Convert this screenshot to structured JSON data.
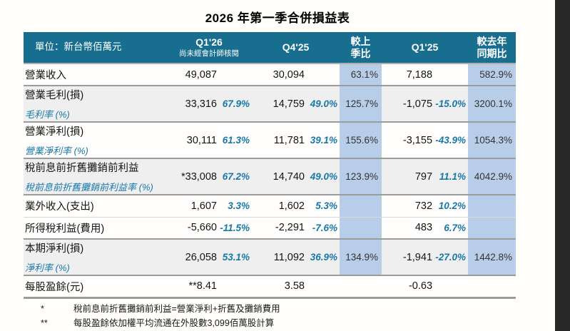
{
  "title": "2026 年第一季合併損益表",
  "colors": {
    "header_bg": "#176e8e",
    "highlight_column": "#b8cee8",
    "shaded_row": "#efefef",
    "accent_text": "#1878a8",
    "edge_bar": "#282828"
  },
  "table": {
    "header": {
      "unit_label": "單位：新台幣佰萬元",
      "q126_line1": "Q1'26",
      "q126_line2": "尚未經會計師核閱",
      "q425": "Q4'25",
      "qoq_line1": "較上",
      "qoq_line2": "季比",
      "q125": "Q1'25",
      "yoy_line1": "較去年",
      "yoy_line2": "同期比"
    },
    "rows": [
      {
        "label": "營業收入",
        "sublabel": "",
        "q126": "49,087",
        "q126_pct": "",
        "q425": "30,094",
        "q425_pct": "",
        "qoq": "63.1%",
        "q125": "7,188",
        "q125_pct": "",
        "yoy": "582.9%",
        "shade": false,
        "light_divider": false,
        "no_highlight": false
      },
      {
        "label": "營業毛利(損)",
        "sublabel": "毛利率 (%)",
        "q126": "33,316",
        "q126_pct": "67.9%",
        "q425": "14,759",
        "q425_pct": "49.0%",
        "qoq": "125.7%",
        "q125": "-1,075",
        "q125_pct": "-15.0%",
        "yoy": "3200.1%",
        "shade": true,
        "light_divider": false,
        "no_highlight": false
      },
      {
        "label": "營業淨利(損)",
        "sublabel": "營業淨利率 (%)",
        "q126": "30,111",
        "q126_pct": "61.3%",
        "q425": "11,781",
        "q425_pct": "39.1%",
        "qoq": "155.6%",
        "q125": "-3,155",
        "q125_pct": "-43.9%",
        "yoy": "1054.3%",
        "shade": false,
        "light_divider": false,
        "no_highlight": false
      },
      {
        "label": "稅前息前折舊攤銷前利益",
        "sublabel": "稅前息前折舊攤銷前利益率 (%)",
        "q126": "*33,008",
        "q126_pct": "67.2%",
        "q425": "14,740",
        "q425_pct": "49.0%",
        "qoq": "123.9%",
        "q125": "797",
        "q125_pct": "11.1%",
        "yoy": "4042.9%",
        "shade": true,
        "light_divider": false,
        "no_highlight": false
      },
      {
        "label": "業外收入(支出)",
        "sublabel": "",
        "q126": "1,607",
        "q126_pct": "3.3%",
        "q425": "1,602",
        "q425_pct": "5.3%",
        "qoq": "",
        "q125": "732",
        "q125_pct": "10.2%",
        "yoy": "",
        "shade": false,
        "light_divider": false,
        "no_highlight": false
      },
      {
        "label": "所得稅利益(費用)",
        "sublabel": "",
        "q126": "-5,660",
        "q126_pct": "-11.5%",
        "q425": "-2,291",
        "q425_pct": "-7.6%",
        "qoq": "",
        "q125": "483",
        "q125_pct": "6.7%",
        "yoy": "",
        "shade": false,
        "light_divider": true,
        "no_highlight": false
      },
      {
        "label": "本期淨利(損)",
        "sublabel": "淨利率 (%)",
        "q126": "26,058",
        "q126_pct": "53.1%",
        "q425": "11,092",
        "q425_pct": "36.9%",
        "qoq": "134.9%",
        "q125": "-1,941",
        "q125_pct": "-27.0%",
        "yoy": "1442.8%",
        "shade": true,
        "light_divider": false,
        "no_highlight": false
      },
      {
        "label": "每股盈餘(元)",
        "sublabel": "",
        "q126": "**8.41",
        "q126_pct": "",
        "q425": "3.58",
        "q425_pct": "",
        "qoq": "",
        "q125": "-0.63",
        "q125_pct": "",
        "yoy": "",
        "shade": false,
        "light_divider": false,
        "no_highlight": true
      }
    ]
  },
  "footnotes": [
    {
      "marker": "*",
      "text": "稅前息前折舊攤銷前利益=營業淨利+折舊及攤銷費用"
    },
    {
      "marker": "**",
      "text": "每股盈餘依加權平均流通在外股數3,099佰萬股計算"
    }
  ]
}
